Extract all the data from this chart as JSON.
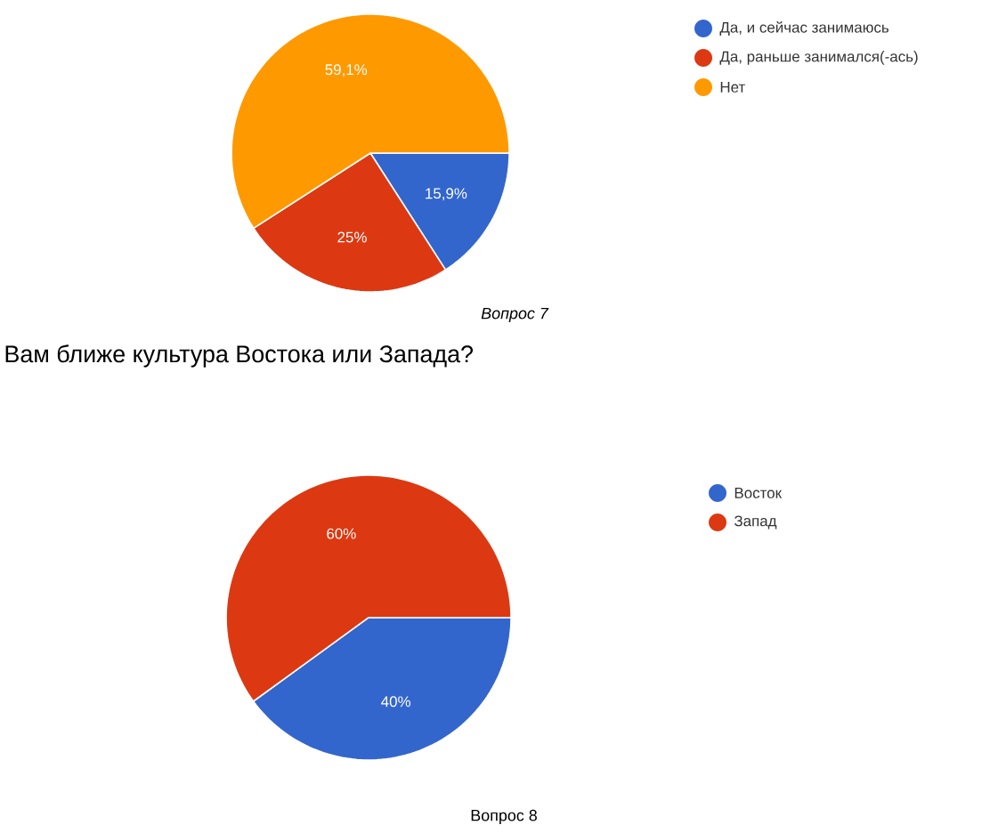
{
  "chart_data": [
    {
      "type": "pie",
      "categories": [
        "Да, и сейчас занимаюсь",
        "Да, раньше занимался(-ась)",
        "Нет"
      ],
      "values": [
        15.9,
        25,
        59.1
      ],
      "colors": [
        "#3366cc",
        "#dc3912",
        "#ff9900"
      ],
      "value_labels": [
        "15,9%",
        "25%",
        "59,1%"
      ],
      "legend": "top right",
      "annotations": [
        "Вопрос 7"
      ]
    },
    {
      "type": "pie",
      "title": "Вам ближе культура Востока или Запада?",
      "categories": [
        "Восток",
        "Запад"
      ],
      "values": [
        40,
        60
      ],
      "colors": [
        "#3366cc",
        "#dc3912"
      ],
      "value_labels": [
        "40%",
        "60%"
      ],
      "legend": "top right",
      "annotations": [
        "Вопрос 8"
      ]
    }
  ]
}
